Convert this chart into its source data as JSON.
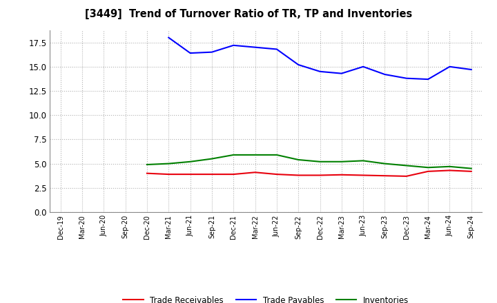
{
  "title": "[3449]  Trend of Turnover Ratio of TR, TP and Inventories",
  "x_labels": [
    "Dec-19",
    "Mar-20",
    "Jun-20",
    "Sep-20",
    "Dec-20",
    "Mar-21",
    "Jun-21",
    "Sep-21",
    "Dec-21",
    "Mar-22",
    "Jun-22",
    "Sep-22",
    "Dec-22",
    "Mar-23",
    "Jun-23",
    "Sep-23",
    "Dec-23",
    "Mar-24",
    "Jun-24",
    "Sep-24"
  ],
  "trade_receivables": [
    null,
    null,
    null,
    null,
    4.0,
    3.9,
    3.9,
    3.9,
    3.9,
    4.1,
    3.9,
    3.8,
    3.8,
    3.85,
    3.8,
    3.75,
    3.7,
    4.2,
    4.3,
    4.2
  ],
  "trade_payables": [
    null,
    null,
    null,
    null,
    null,
    18.0,
    16.4,
    16.5,
    17.2,
    17.0,
    16.8,
    15.2,
    14.5,
    14.3,
    15.0,
    14.2,
    13.8,
    13.7,
    15.0,
    14.7
  ],
  "inventories": [
    null,
    null,
    null,
    null,
    4.9,
    5.0,
    5.2,
    5.5,
    5.9,
    5.9,
    5.9,
    5.4,
    5.2,
    5.2,
    5.3,
    5.0,
    4.8,
    4.6,
    4.7,
    4.5
  ],
  "ylim": [
    0.0,
    18.75
  ],
  "yticks": [
    0.0,
    2.5,
    5.0,
    7.5,
    10.0,
    12.5,
    15.0,
    17.5
  ],
  "color_tr": "#e8000d",
  "color_tp": "#0000ff",
  "color_inv": "#008000",
  "legend_labels": [
    "Trade Receivables",
    "Trade Payables",
    "Inventories"
  ],
  "background_color": "#ffffff",
  "grid_color": "#b0b0b0",
  "linewidth": 1.5
}
